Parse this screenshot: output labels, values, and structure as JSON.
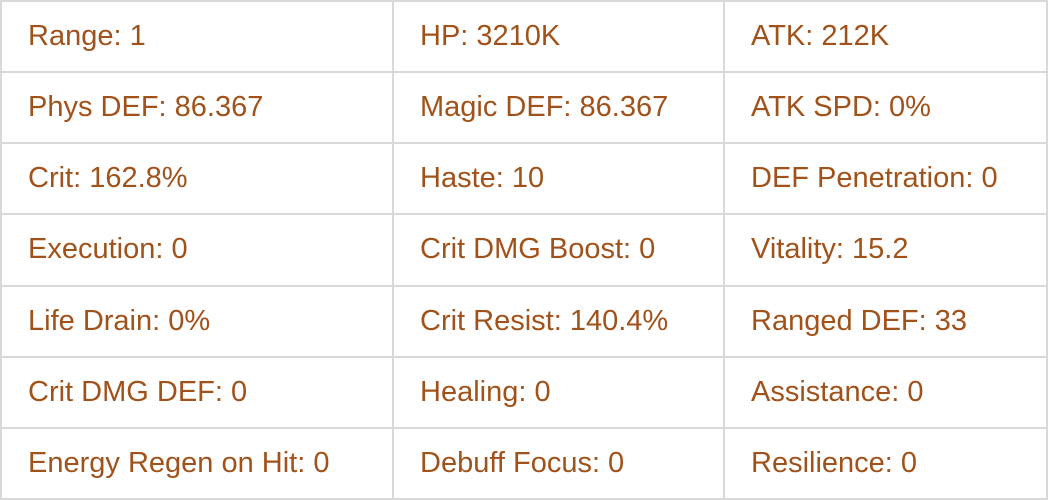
{
  "text_color": "#a0521a",
  "stats": [
    [
      "Range: 1",
      "HP: 3210K",
      "ATK: 212K"
    ],
    [
      "Phys DEF: 86.367",
      "Magic DEF: 86.367",
      "ATK SPD: 0%"
    ],
    [
      "Crit: 162.8%",
      "Haste: 10",
      "DEF Penetration: 0"
    ],
    [
      "Execution: 0",
      "Crit DMG Boost: 0",
      "Vitality: 15.2"
    ],
    [
      "Life Drain: 0%",
      "Crit Resist: 140.4%",
      "Ranged DEF: 33"
    ],
    [
      "Crit DMG DEF: 0",
      "Healing: 0",
      "Assistance: 0"
    ],
    [
      "Energy Regen on Hit: 0",
      "Debuff Focus: 0",
      "Resilience: 0"
    ]
  ]
}
